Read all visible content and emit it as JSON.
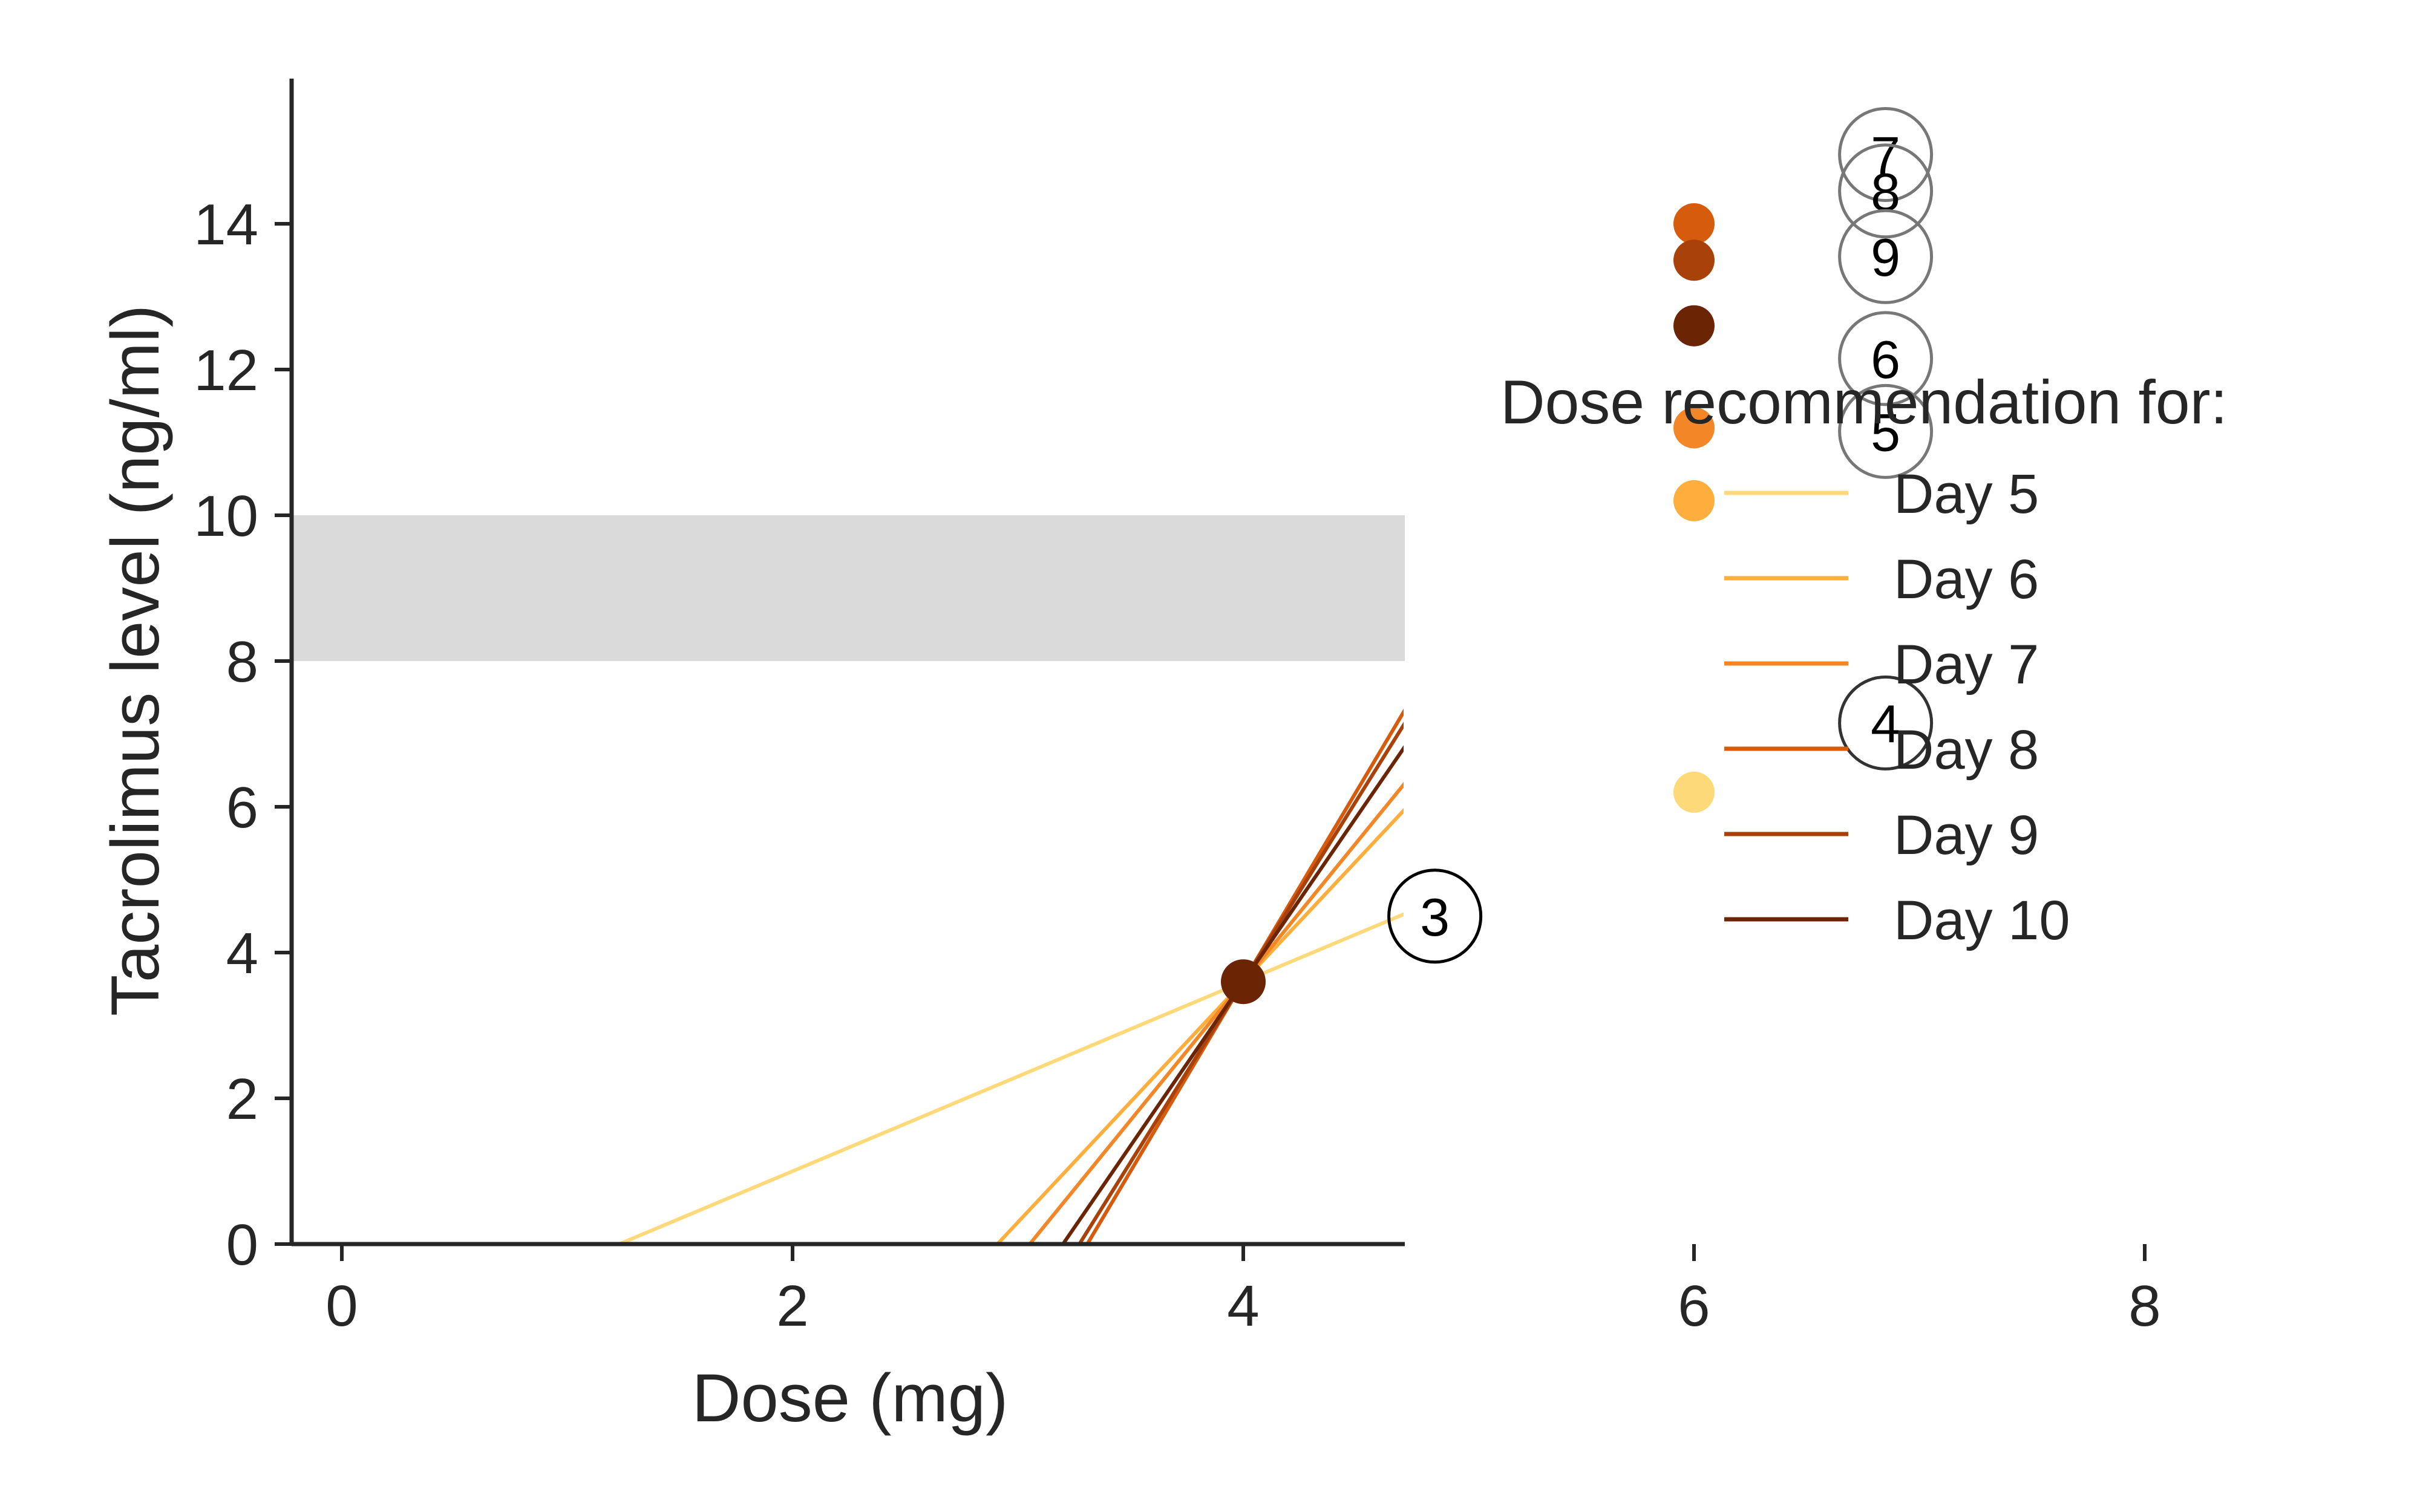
{
  "chart_data": {
    "type": "line",
    "xlabel": "Dose (mg)",
    "ylabel": "Tacrolimus level (ng/ml)",
    "xlim": [
      -0.45,
      9.45
    ],
    "ylim": [
      0,
      16
    ],
    "xticks": [
      0,
      2,
      4,
      6,
      8
    ],
    "yticks": [
      0,
      2,
      4,
      6,
      8,
      10,
      12,
      14
    ],
    "grid": false,
    "target_band": {
      "y_from": 8,
      "y_to": 10,
      "color": "#dadada"
    },
    "legend": {
      "title": "Dose recommendation for:",
      "placement": "right"
    },
    "series": [
      {
        "name": "Day 5",
        "color": "#fed97a",
        "points": [
          [
            4,
            3.6
          ],
          [
            6,
            6.2
          ]
        ],
        "line_x": [
          1.23,
          9.0
        ]
      },
      {
        "name": "Day 6",
        "color": "#fdae3d",
        "points": [
          [
            4,
            3.6
          ],
          [
            6,
            10.2
          ]
        ],
        "line_x": [
          2.9,
          9.45
        ]
      },
      {
        "name": "Day 7",
        "color": "#f38626",
        "points": [
          [
            4,
            3.6
          ],
          [
            6,
            11.2
          ]
        ],
        "line_x": [
          3.05,
          9.45
        ]
      },
      {
        "name": "Day 8",
        "color": "#d65b0c",
        "points": [
          [
            4,
            3.6
          ],
          [
            6,
            14.0
          ]
        ],
        "line_x": [
          3.3,
          9.45
        ]
      },
      {
        "name": "Day 9",
        "color": "#a9410a",
        "points": [
          [
            4,
            3.6
          ],
          [
            6,
            13.5
          ]
        ],
        "line_x": [
          3.27,
          9.45
        ]
      },
      {
        "name": "Day 10",
        "color": "#6b2505",
        "points": [
          [
            4,
            3.6
          ],
          [
            6,
            12.6
          ]
        ],
        "line_x": [
          3.2,
          9.45
        ]
      }
    ],
    "annotations": [
      {
        "text": "3",
        "x": 4.85,
        "y": 4.5,
        "edge": "#000000"
      },
      {
        "text": "4",
        "x": 6.85,
        "y": 7.15,
        "edge": "#333333"
      },
      {
        "text": "5",
        "x": 6.85,
        "y": 11.15,
        "edge": "#777777"
      },
      {
        "text": "6",
        "x": 6.85,
        "y": 12.15,
        "edge": "#777777"
      },
      {
        "text": "7",
        "x": 6.85,
        "y": 14.95,
        "edge": "#777777"
      },
      {
        "text": "8",
        "x": 6.85,
        "y": 14.45,
        "edge": "#777777"
      },
      {
        "text": "9",
        "x": 6.85,
        "y": 13.55,
        "edge": "#777777"
      }
    ]
  }
}
